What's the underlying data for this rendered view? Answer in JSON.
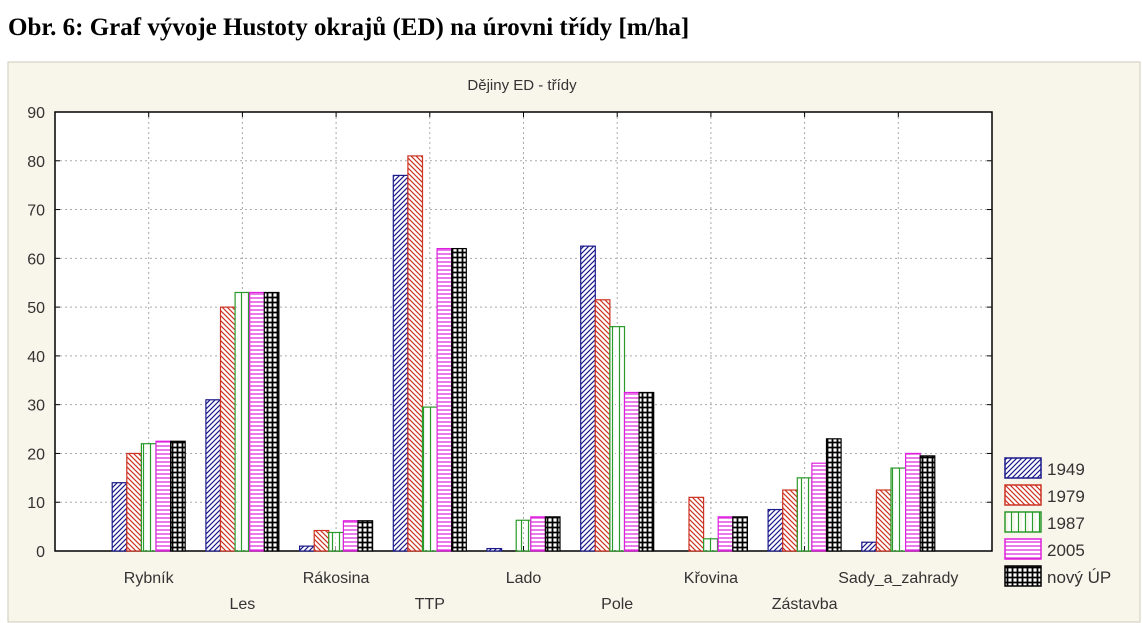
{
  "figure_title": "Obr. 6: Graf vývoje Hustoty okrajů (ED) na úrovni třídy [m/ha]",
  "chart_data": {
    "type": "bar",
    "title": "Dějiny ED - třídy",
    "xlabel": "",
    "ylabel": "",
    "ylim": [
      0,
      90
    ],
    "yticks": [
      0,
      10,
      20,
      30,
      40,
      50,
      60,
      70,
      80,
      90
    ],
    "grid": true,
    "legend_position": "right-bottom",
    "categories": [
      "Rybník",
      "Les",
      "Rákosina",
      "TTP",
      "Lado",
      "Pole",
      "Křovina",
      "Zástavba",
      "Sady_a_zahrady"
    ],
    "series": [
      {
        "name": "1949",
        "color": "#1a1a8a",
        "pattern": "diagonal-up",
        "values": [
          14,
          31,
          1,
          77,
          0.5,
          62.5,
          0,
          8.5,
          1.8
        ]
      },
      {
        "name": "1979",
        "color": "#cc3322",
        "pattern": "diagonal-down",
        "values": [
          20,
          50,
          4.2,
          81,
          0,
          51.5,
          11,
          12.5,
          12.5
        ]
      },
      {
        "name": "1987",
        "color": "#2a9a2a",
        "pattern": "vertical",
        "values": [
          22,
          53,
          3.8,
          29.5,
          6.3,
          46,
          2.5,
          15,
          17
        ]
      },
      {
        "name": "2005",
        "color": "#dd22dd",
        "pattern": "horizontal",
        "values": [
          22.5,
          53,
          6.2,
          62,
          7,
          32.5,
          7,
          18,
          20
        ]
      },
      {
        "name": "nový ÚP",
        "color": "#000000",
        "pattern": "grid",
        "values": [
          22.5,
          53,
          6.2,
          62,
          7,
          32.5,
          7,
          23,
          19.5
        ]
      }
    ]
  }
}
